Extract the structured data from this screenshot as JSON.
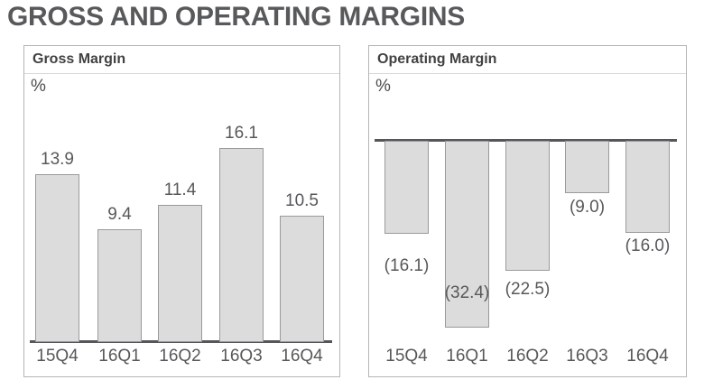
{
  "title": "GROSS AND OPERATING MARGINS",
  "colors": {
    "title_text": "#58595b",
    "header_text": "#424242",
    "axis_text": "#57585a",
    "bar_fill": "#dcdcdc",
    "bar_border": "#9a9a9a",
    "axis_line": "#55565a",
    "panel_border": "#b5b5b5"
  },
  "chart_data": [
    {
      "type": "bar",
      "title": "Gross Margin",
      "unit": "%",
      "categories": [
        "15Q4",
        "16Q1",
        "16Q2",
        "16Q3",
        "16Q4"
      ],
      "values": [
        13.9,
        9.4,
        11.4,
        16.1,
        10.5
      ],
      "labels": [
        "13.9",
        "9.4",
        "11.4",
        "16.1",
        "10.5"
      ],
      "ylabel": "%",
      "ylim": [
        0,
        22
      ],
      "grid": false,
      "legend": false,
      "baseline": "bottom"
    },
    {
      "type": "bar",
      "title": "Operating Margin",
      "unit": "%",
      "categories": [
        "15Q4",
        "16Q1",
        "16Q2",
        "16Q3",
        "16Q4"
      ],
      "values": [
        -16.1,
        -32.4,
        -22.5,
        -9.0,
        -16.0
      ],
      "labels": [
        "(16.1)",
        "(32.4)",
        "(22.5)",
        "(9.0)",
        "(16.0)"
      ],
      "ylabel": "%",
      "ylim": [
        -35,
        0
      ],
      "grid": false,
      "legend": false,
      "baseline": "top-zero-line"
    }
  ]
}
